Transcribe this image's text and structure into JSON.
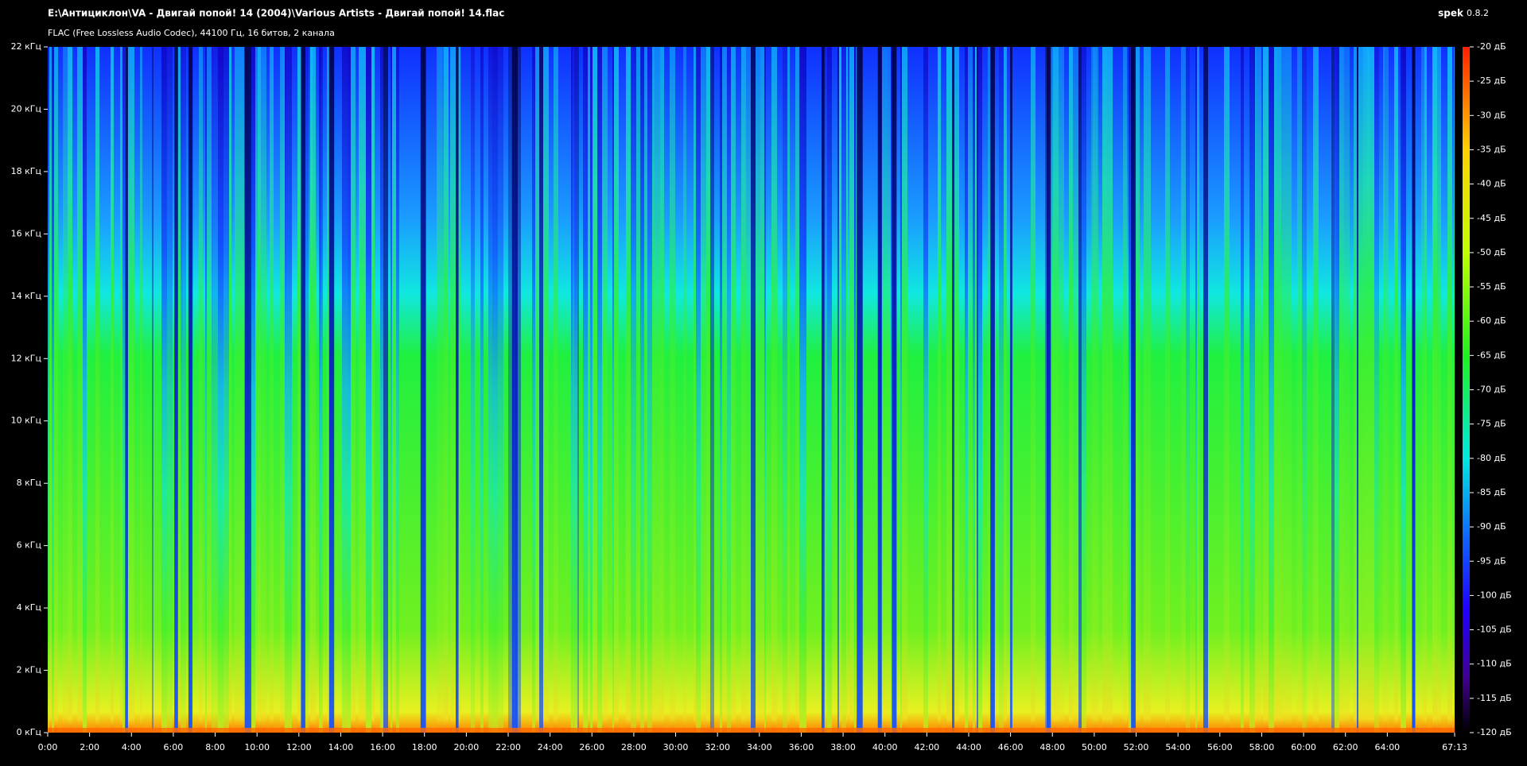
{
  "window": {
    "title": "E:\\Антициклон\\VA - Двигай попой! 14 (2004)\\Various Artists - Двигай попой! 14.flac",
    "app_name": "spek",
    "app_version": "0.8.2",
    "file_info": "FLAC (Free Lossless Audio Codec), 44100 Гц, 16 битов, 2 канала"
  },
  "frequency_axis": {
    "labels": [
      "22 кГц",
      "20 кГц",
      "18 кГц",
      "16 кГц",
      "14 кГц",
      "12 кГц",
      "10 кГц",
      "8 кГц",
      "6 кГц",
      "4 кГц",
      "2 кГц",
      "0 кГц"
    ]
  },
  "time_axis": {
    "labels": [
      "0:00",
      "2:00",
      "4:00",
      "6:00",
      "8:00",
      "10:00",
      "12:00",
      "14:00",
      "16:00",
      "18:00",
      "20:00",
      "22:00",
      "24:00",
      "26:00",
      "28:00",
      "30:00",
      "32:00",
      "34:00",
      "36:00",
      "38:00",
      "40:00",
      "42:00",
      "44:00",
      "46:00",
      "48:00",
      "50:00",
      "52:00",
      "54:00",
      "56:00",
      "58:00",
      "60:00",
      "62:00",
      "64:00",
      "67:13"
    ]
  },
  "level_scale": {
    "labels": [
      "-20 дБ",
      "-25 дБ",
      "-30 дБ",
      "-35 дБ",
      "-40 дБ",
      "-45 дБ",
      "-50 дБ",
      "-55 дБ",
      "-60 дБ",
      "-65 дБ",
      "-70 дБ",
      "-75 дБ",
      "-80 дБ",
      "-85 дБ",
      "-90 дБ",
      "-95 дБ",
      "-100 дБ",
      "-105 дБ",
      "-110 дБ",
      "-115 дБ",
      "-120 дБ"
    ]
  }
}
